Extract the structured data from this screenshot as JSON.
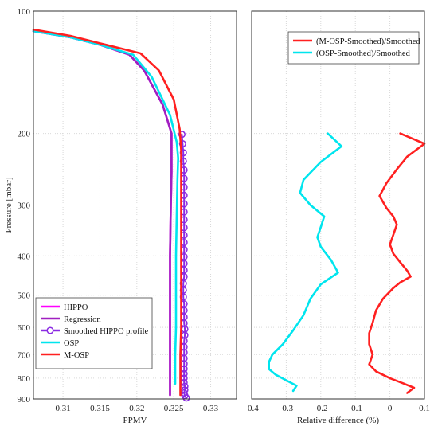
{
  "chart_data": [
    {
      "type": "line",
      "xlabel": "PPMV",
      "ylabel": "Pressure [mbar]",
      "xlim": [
        0.306,
        0.3335
      ],
      "ylim": [
        900,
        100
      ],
      "yscale": "log",
      "xticks": [
        "0.31",
        "0.315",
        "0.32",
        "0.325",
        "0.33"
      ],
      "yticks": [
        "100",
        "200",
        "300",
        "400",
        "500",
        "600",
        "700",
        "800",
        "900"
      ],
      "grid": true,
      "legend_position": "bottom-left",
      "series": [
        {
          "name": "HIPPO",
          "color": "#ff00ff",
          "marker": "none",
          "x": [
            0.306,
            0.311,
            0.315,
            0.319,
            0.321,
            0.3235,
            0.3247,
            0.3247,
            0.3246,
            0.3245,
            0.3245,
            0.3245,
            0.3245,
            0.3245
          ],
          "y": [
            112,
            116,
            121,
            128,
            140,
            170,
            200,
            250,
            300,
            400,
            500,
            600,
            700,
            880
          ]
        },
        {
          "name": "Regression",
          "color": "#a020c0",
          "marker": "none",
          "x": [
            0.306,
            0.311,
            0.315,
            0.319,
            0.321,
            0.3235,
            0.3247,
            0.3247,
            0.3246,
            0.3245,
            0.3245,
            0.3245,
            0.3245,
            0.3245
          ],
          "y": [
            112,
            116,
            121,
            128,
            140,
            170,
            200,
            250,
            300,
            400,
            500,
            600,
            700,
            880
          ]
        },
        {
          "name": "Smoothed HIPPO profile",
          "color": "#8a2be2",
          "marker": "circle",
          "x": [
            0.3261,
            0.3262,
            0.3263,
            0.3263,
            0.3264,
            0.3264,
            0.3264,
            0.3264,
            0.3264,
            0.3264,
            0.3264,
            0.3264,
            0.3264,
            0.3264,
            0.3264,
            0.3264,
            0.3264,
            0.3264,
            0.3264,
            0.3263,
            0.3263,
            0.3263,
            0.3264,
            0.3264,
            0.3264,
            0.3264,
            0.3265,
            0.3265,
            0.3264,
            0.3264,
            0.3264,
            0.3264,
            0.3264,
            0.3264,
            0.3264,
            0.3264,
            0.3264,
            0.3265,
            0.3265,
            0.3264,
            0.3265,
            0.3267
          ],
          "y": [
            201,
            212,
            223,
            234,
            246,
            258,
            271,
            284,
            298,
            312,
            326,
            341,
            356,
            371,
            386,
            402,
            418,
            434,
            450,
            468,
            486,
            505,
            525,
            545,
            566,
            586,
            606,
            627,
            648,
            670,
            692,
            715,
            737,
            759,
            780,
            800,
            820,
            838,
            855,
            870,
            883,
            895
          ]
        },
        {
          "name": "OSP",
          "color": "#00e5ee",
          "marker": "none",
          "x": [
            0.306,
            0.311,
            0.315,
            0.3195,
            0.322,
            0.3245,
            0.3254,
            0.3256,
            0.3255,
            0.3254,
            0.3253,
            0.3253,
            0.3253,
            0.3252,
            0.3252
          ],
          "y": [
            112,
            116,
            121,
            128,
            145,
            180,
            210,
            230,
            260,
            320,
            400,
            500,
            600,
            700,
            825
          ]
        },
        {
          "name": "M-OSP",
          "color": "#ff2020",
          "marker": "none",
          "x": [
            0.306,
            0.311,
            0.315,
            0.3205,
            0.323,
            0.325,
            0.3258,
            0.326,
            0.326,
            0.326,
            0.326,
            0.326,
            0.326,
            0.3259,
            0.3259,
            0.3259,
            0.3259
          ],
          "y": [
            111,
            115,
            120,
            127,
            140,
            165,
            195,
            220,
            260,
            320,
            400,
            500,
            600,
            700,
            770,
            820,
            880
          ]
        }
      ]
    },
    {
      "type": "line",
      "xlabel": "Relative difference (%)",
      "xlim": [
        -0.4,
        0.1
      ],
      "ylim": [
        900,
        100
      ],
      "yscale": "log",
      "xticks": [
        "-0.4",
        "-0.3",
        "-0.2",
        "-0.1",
        "0",
        "0.1"
      ],
      "grid": true,
      "legend_position": "top-right",
      "series": [
        {
          "name": "(M-OSP-Smoothed)/Smoothed",
          "color": "#ff2020",
          "x": [
            0.03,
            0.1,
            0.05,
            0.02,
            -0.01,
            -0.03,
            -0.01,
            0.01,
            0.02,
            0.01,
            0.0,
            0.01,
            0.03,
            0.05,
            0.06,
            0.03,
            0.01,
            -0.02,
            -0.04,
            -0.05,
            -0.06,
            -0.06,
            -0.05,
            -0.06,
            -0.04,
            0.0,
            0.04,
            0.07,
            0.05
          ],
          "y": [
            200,
            212,
            228,
            245,
            265,
            285,
            305,
            320,
            335,
            355,
            375,
            395,
            415,
            435,
            450,
            465,
            480,
            510,
            545,
            585,
            620,
            660,
            700,
            740,
            770,
            800,
            825,
            845,
            870
          ]
        },
        {
          "name": "(OSP-Smoothed)/Smoothed",
          "color": "#00e5ee",
          "x": [
            -0.18,
            -0.14,
            -0.2,
            -0.25,
            -0.26,
            -0.23,
            -0.19,
            -0.2,
            -0.21,
            -0.2,
            -0.17,
            -0.15,
            -0.2,
            -0.23,
            -0.25,
            -0.28,
            -0.31,
            -0.34,
            -0.35,
            -0.35,
            -0.33,
            -0.3,
            -0.27,
            -0.28
          ],
          "y": [
            200,
            215,
            235,
            260,
            280,
            300,
            320,
            340,
            360,
            380,
            410,
            440,
            470,
            510,
            560,
            610,
            660,
            700,
            730,
            760,
            785,
            810,
            835,
            860
          ]
        }
      ]
    }
  ]
}
